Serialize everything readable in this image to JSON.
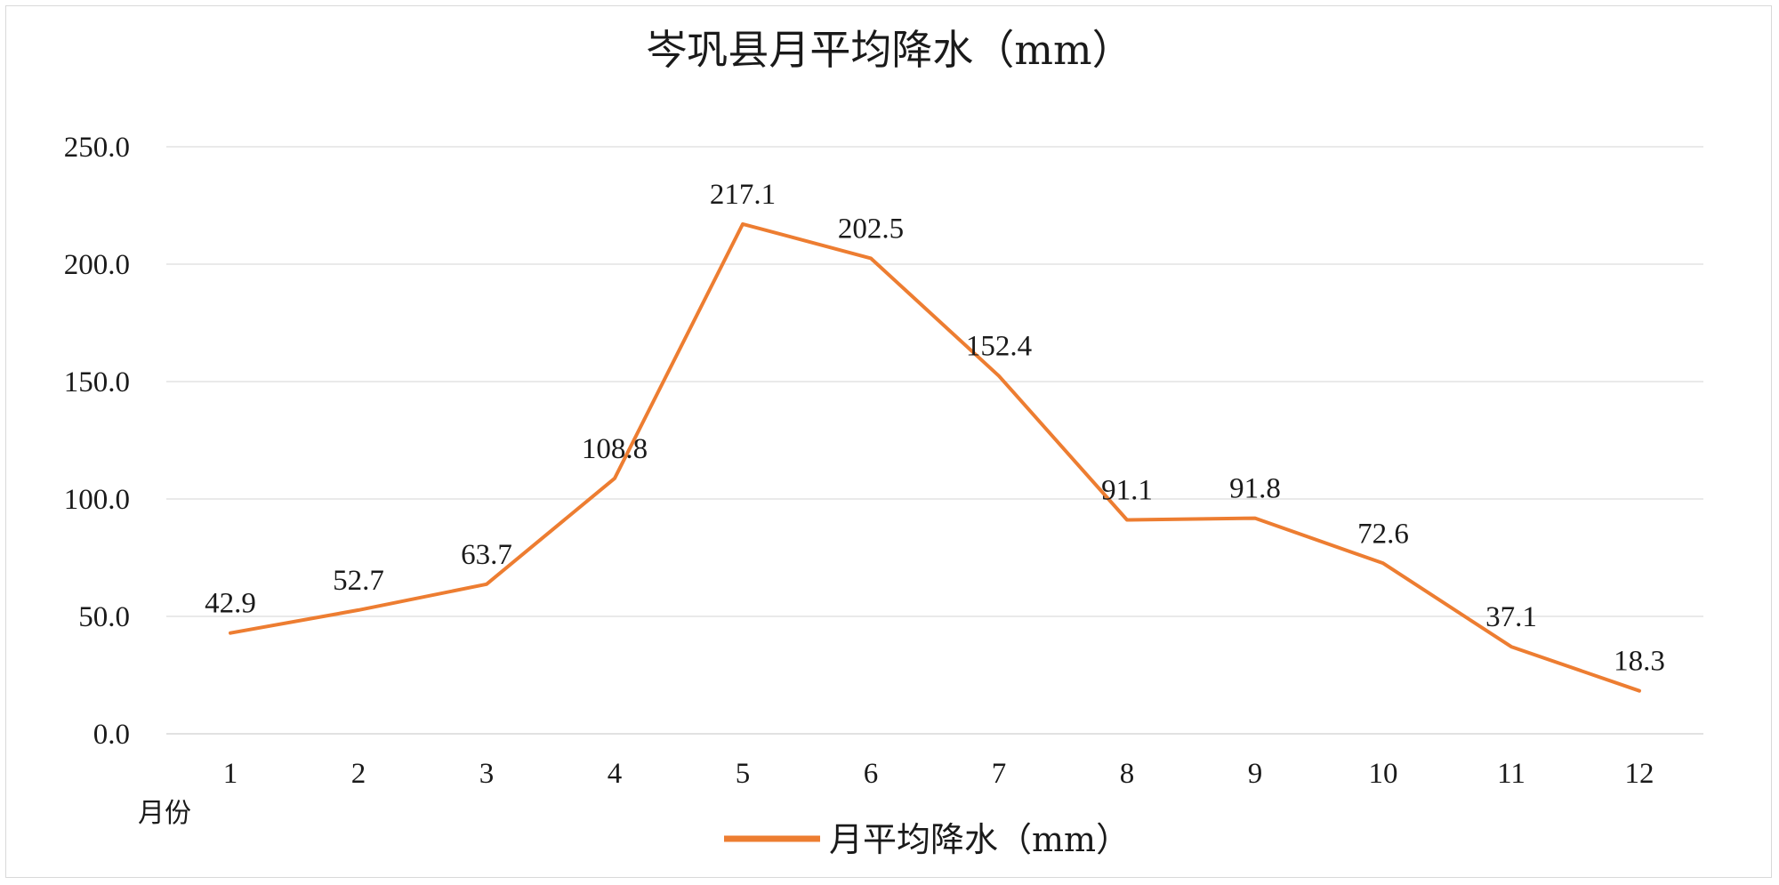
{
  "chart_data": {
    "type": "line",
    "title": "岑巩县月平均降水（mm）",
    "xlabel": "月份",
    "ylabel": "",
    "categories": [
      "1",
      "2",
      "3",
      "4",
      "5",
      "6",
      "7",
      "8",
      "9",
      "10",
      "11",
      "12"
    ],
    "series": [
      {
        "name": "月平均降水（mm）",
        "values": [
          42.9,
          52.7,
          63.7,
          108.8,
          217.1,
          202.5,
          152.4,
          91.1,
          91.8,
          72.6,
          37.1,
          18.3
        ],
        "color": "#ED7D31"
      }
    ],
    "ylim": [
      0,
      250
    ],
    "yticks": [
      "0.0",
      "50.0",
      "100.0",
      "150.0",
      "200.0",
      "250.0"
    ],
    "data_labels": [
      "42.9",
      "52.7",
      "63.7",
      "108.8",
      "217.1",
      "202.5",
      "152.4",
      "91.1",
      "91.8",
      "72.6",
      "37.1",
      "18.3"
    ],
    "grid": true,
    "legend_position": "bottom"
  }
}
